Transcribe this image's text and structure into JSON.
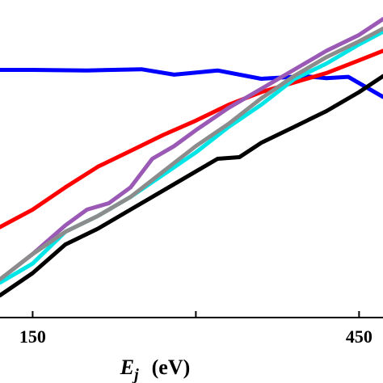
{
  "chart_data": {
    "type": "line",
    "xlabel": {
      "symbol": "E",
      "subscript": "j",
      "unit": "(eV)"
    },
    "ylabel": "",
    "xlim": [
      120,
      472
    ],
    "ylim": [
      0,
      100
    ],
    "x_ticks": [
      150,
      300,
      450
    ],
    "x_tick_labels": [
      "150",
      "",
      "450"
    ],
    "grid": false,
    "series": [
      {
        "color": "#0000ff",
        "x": [
          120,
          150,
          200,
          250,
          280,
          320,
          360,
          400,
          420,
          440,
          472
        ],
        "y": [
          78,
          78,
          77.8,
          78.2,
          76.5,
          77.8,
          75.2,
          76,
          75.4,
          75.8,
          69.5
        ]
      },
      {
        "color": "#ff0000",
        "x": [
          120,
          150,
          180,
          210,
          240,
          270,
          300,
          330,
          360,
          390,
          420,
          450,
          472
        ],
        "y": [
          28.5,
          34,
          41,
          47.5,
          52.5,
          57.5,
          62,
          67,
          71,
          74,
          77,
          81,
          84
        ]
      },
      {
        "color": "#9b59b6",
        "x": [
          120,
          150,
          180,
          200,
          220,
          240,
          260,
          280,
          300,
          330,
          360,
          390,
          420,
          450,
          472
        ],
        "y": [
          12,
          20,
          29,
          34,
          36,
          41,
          50,
          54,
          59,
          66,
          72,
          78,
          84,
          89,
          94
        ]
      },
      {
        "color": "#00e5e5",
        "x": [
          120,
          150,
          180,
          210,
          240,
          270,
          300,
          330,
          360,
          390,
          420,
          450,
          472
        ],
        "y": [
          11,
          17,
          27,
          32,
          38,
          45,
          52,
          60,
          67,
          75,
          80,
          86,
          90
        ]
      },
      {
        "color": "#8c8c8c",
        "x": [
          120,
          150,
          180,
          210,
          240,
          270,
          300,
          330,
          360,
          390,
          420,
          450,
          472
        ],
        "y": [
          12,
          20,
          27,
          32,
          38,
          46,
          54,
          61,
          69,
          76,
          82,
          87,
          91
        ]
      },
      {
        "color": "#000000",
        "x": [
          120,
          150,
          180,
          210,
          240,
          270,
          300,
          320,
          340,
          360,
          390,
          420,
          450,
          472
        ],
        "y": [
          7,
          14,
          23,
          28,
          34,
          40,
          46,
          50,
          50.5,
          55,
          60,
          65,
          71,
          76
        ]
      }
    ]
  }
}
